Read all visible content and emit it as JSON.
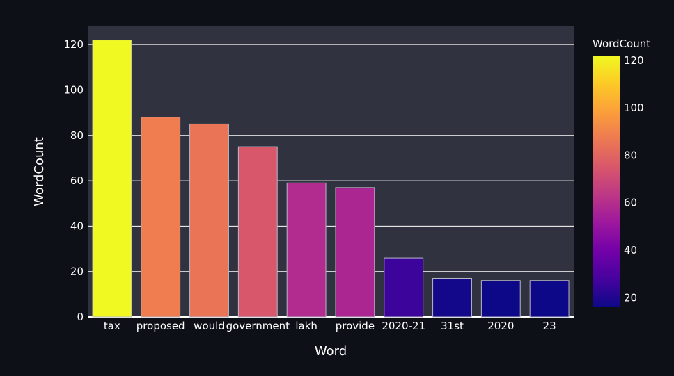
{
  "colors": {
    "background": "#0d1017",
    "plot_background": "#30333f",
    "grid": "#ffffff",
    "bar_outline": "#b8b8c8"
  },
  "chart_data": {
    "type": "bar",
    "xlabel": "Word",
    "ylabel": "WordCount",
    "categories": [
      "tax",
      "proposed",
      "would",
      "government",
      "lakh",
      "provide",
      "2020-21",
      "31st",
      "2020",
      "23"
    ],
    "values": [
      122,
      88,
      85,
      75,
      59,
      57,
      26,
      17,
      16,
      16
    ],
    "ylim": [
      0,
      128
    ],
    "yticks": [
      0,
      20,
      40,
      60,
      80,
      100,
      120
    ],
    "grid": true,
    "colorbar": {
      "title": "WordCount",
      "range": [
        16,
        122
      ],
      "ticks": [
        20,
        40,
        60,
        80,
        100,
        120
      ],
      "colorscale": "plasma",
      "placement": "right"
    }
  }
}
